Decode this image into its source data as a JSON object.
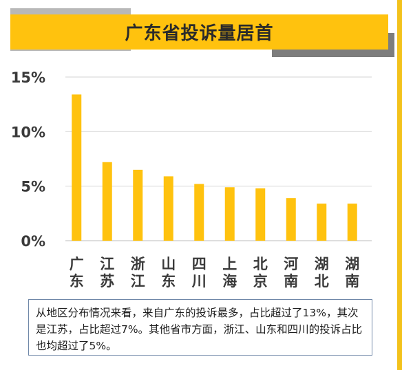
{
  "chart_data": {
    "type": "bar",
    "title": "广东省投诉量居首",
    "categories": [
      "广东",
      "江苏",
      "浙江",
      "山东",
      "四川",
      "上海",
      "北京",
      "河南",
      "湖北",
      "湖南"
    ],
    "values": [
      13.4,
      7.2,
      6.5,
      5.9,
      5.2,
      4.9,
      4.8,
      3.9,
      3.4,
      3.4
    ],
    "ylim": [
      0,
      15
    ],
    "yticks": [
      "0%",
      "5%",
      "10%",
      "15%"
    ],
    "ytick_values": [
      0,
      5,
      10,
      15
    ],
    "grid": true,
    "xlabel": "",
    "ylabel": "",
    "bar_color": "#ffc20e"
  },
  "note": "从地区分布情况来看，来自广东的投诉最多，占比超过了13%，其次是江苏，占比超过7%。其他省市方面，浙江、山东和四川的投诉占比也均超过了5%。",
  "colors": {
    "accent": "#ffc20e",
    "note_border": "#6f87a8"
  }
}
